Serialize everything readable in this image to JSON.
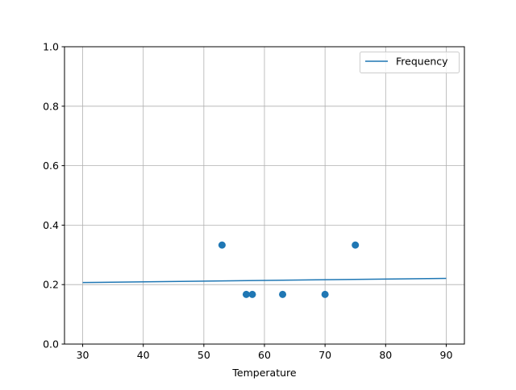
{
  "chart_data": {
    "type": "scatter",
    "title": "",
    "xlabel": "Temperature",
    "ylabel": "",
    "xlim": [
      27,
      93
    ],
    "ylim": [
      0,
      1
    ],
    "xticks": [
      30,
      40,
      50,
      60,
      70,
      80,
      90
    ],
    "yticks": [
      0.0,
      0.2,
      0.4,
      0.6,
      0.8,
      1.0
    ],
    "xtick_labels": [
      "30",
      "40",
      "50",
      "60",
      "70",
      "80",
      "90"
    ],
    "ytick_labels": [
      "0.0",
      "0.2",
      "0.4",
      "0.6",
      "0.8",
      "1.0"
    ],
    "grid": true,
    "legend_position": "top-right",
    "color": "#1f77b4",
    "points": {
      "x": [
        53,
        57,
        58,
        63,
        70,
        75
      ],
      "y": [
        0.333,
        0.167,
        0.167,
        0.167,
        0.167,
        0.333
      ]
    },
    "line": {
      "name": "Frequency",
      "x": [
        30,
        90
      ],
      "y": [
        0.207,
        0.221
      ]
    }
  }
}
